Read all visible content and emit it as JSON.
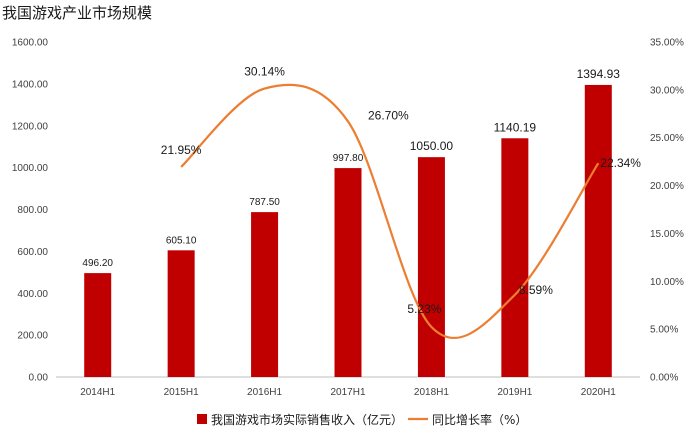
{
  "chart_data": {
    "type": "bar",
    "title": "我国游戏产业市场规模",
    "categories": [
      "2014H1",
      "2015H1",
      "2016H1",
      "2017H1",
      "2018H1",
      "2019H1",
      "2020H1"
    ],
    "series": [
      {
        "name": "我国游戏市场实际销售收入（亿元）",
        "type": "bar",
        "axis": "left",
        "color": "#C00000",
        "values": [
          496.2,
          605.1,
          787.5,
          997.8,
          1050.0,
          1140.19,
          1394.93
        ],
        "labels": [
          "496.20",
          "605.10",
          "787.50",
          "997.80",
          "1050.00",
          "1140.19",
          "1394.93"
        ]
      },
      {
        "name": "同比增长率（%）",
        "type": "line",
        "smooth": true,
        "axis": "right",
        "color": "#ED7D31",
        "values": [
          null,
          21.95,
          30.14,
          26.7,
          5.23,
          8.59,
          22.34
        ],
        "labels": [
          "",
          "21.95%",
          "30.14%",
          "26.70%",
          "5.23%",
          "8.59%",
          "22.34%"
        ]
      }
    ],
    "y_left": {
      "lim": [
        0,
        1600
      ],
      "ticks": [
        "0.00",
        "200.00",
        "400.00",
        "600.00",
        "800.00",
        "1000.00",
        "1200.00",
        "1400.00",
        "1600.00"
      ]
    },
    "y_right": {
      "lim": [
        0,
        35
      ],
      "ticks": [
        "0.00%",
        "5.00%",
        "10.00%",
        "15.00%",
        "20.00%",
        "25.00%",
        "30.00%",
        "35.00%"
      ]
    },
    "grid": false,
    "legend_position": "bottom"
  }
}
